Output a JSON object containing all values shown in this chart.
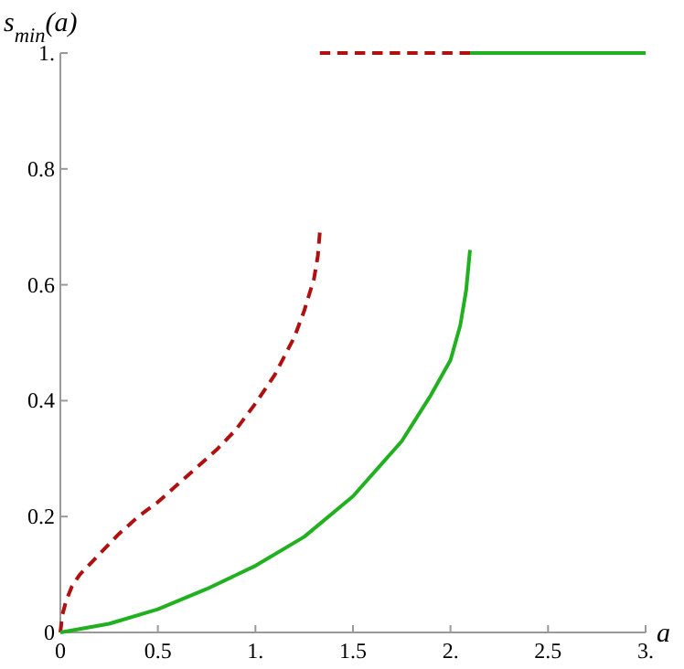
{
  "chart_data": {
    "type": "line",
    "xlabel": "a",
    "ylabel": "s$_{min}$(a)",
    "xlim": [
      0,
      3
    ],
    "ylim": [
      0,
      1
    ],
    "xticks": [
      0,
      0.5,
      {
        "value": 1,
        "label": "1."
      },
      1.5,
      {
        "value": 2,
        "label": "2."
      },
      2.5,
      {
        "value": 3,
        "label": "3."
      }
    ],
    "yticks": [
      0,
      0.2,
      0.4,
      0.6,
      0.8,
      {
        "value": 1,
        "label": "1."
      }
    ],
    "grid": false,
    "marker": "none",
    "series": [
      {
        "color": "#b01010",
        "line_style": "dashed",
        "x": [
          0,
          0.01,
          0.03,
          0.06,
          0.1,
          0.2,
          0.3,
          0.4,
          0.5,
          0.6,
          0.7,
          0.8,
          0.9,
          1.0,
          1.1,
          1.2,
          1.25,
          1.3,
          1.32,
          1.33
        ],
        "values": [
          0,
          0.03,
          0.055,
          0.08,
          0.1,
          0.135,
          0.17,
          0.2,
          0.225,
          0.255,
          0.285,
          0.315,
          0.35,
          0.395,
          0.445,
          0.51,
          0.555,
          0.61,
          0.65,
          0.69
        ]
      },
      {
        "color": "#b01010",
        "line_style": "dashed",
        "x": [
          1.33,
          2.1
        ],
        "values": [
          1,
          1
        ]
      },
      {
        "color": "#20b020",
        "line_style": "solid",
        "x": [
          0,
          0.25,
          0.5,
          0.75,
          1.0,
          1.25,
          1.5,
          1.75,
          1.9,
          2.0,
          2.05,
          2.08,
          2.1
        ],
        "values": [
          0,
          0.015,
          0.04,
          0.075,
          0.115,
          0.165,
          0.235,
          0.33,
          0.41,
          0.47,
          0.53,
          0.59,
          0.66
        ]
      },
      {
        "color": "#20b020",
        "line_style": "solid",
        "x": [
          2.1,
          3
        ],
        "values": [
          1,
          1
        ]
      }
    ]
  }
}
